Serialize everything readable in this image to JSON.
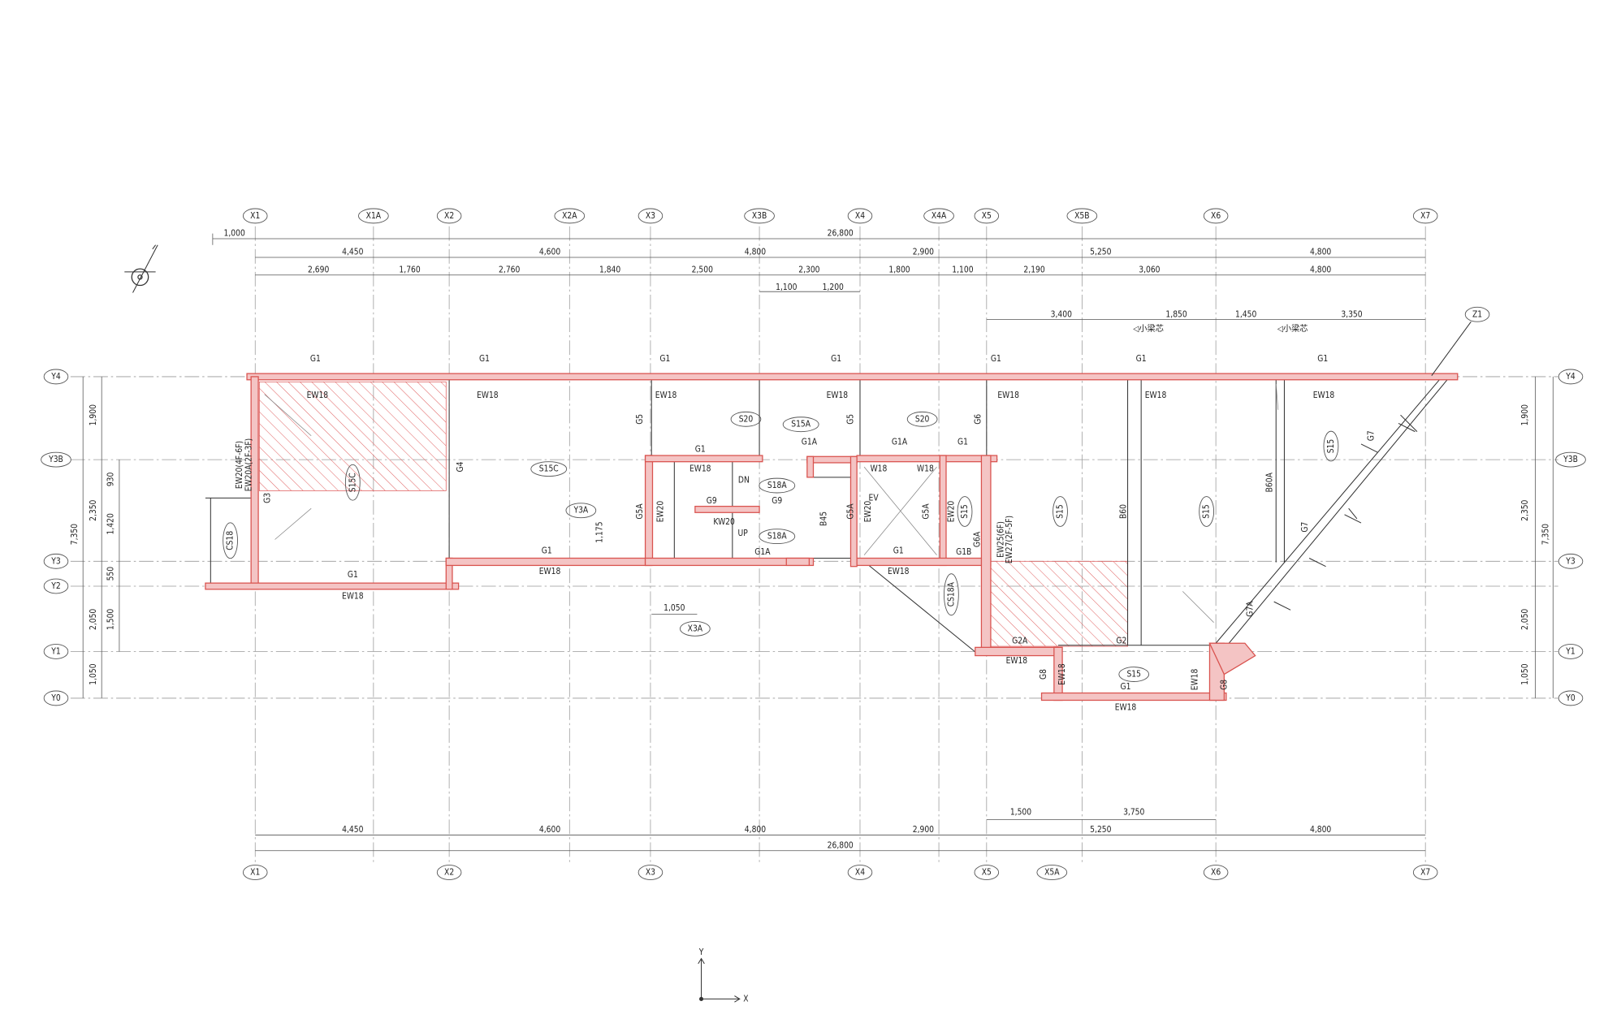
{
  "grid_labels": {
    "top": [
      "X1",
      "X1A",
      "X2",
      "X2A",
      "X3",
      "X3B",
      "X4",
      "X4A",
      "X5",
      "X5B",
      "X6",
      "X7"
    ],
    "bottom": [
      "X1",
      "X2",
      "X3",
      "X4",
      "X5",
      "X5A",
      "X6",
      "X7"
    ],
    "left": [
      "Y4",
      "Y3B",
      "Y3",
      "Y2",
      "Y1",
      "Y0"
    ],
    "right": [
      "Y4",
      "Y3B",
      "Y3",
      "Y1",
      "Y0"
    ],
    "extra": [
      "Z1"
    ]
  },
  "dimensions": {
    "top": [
      "1,000",
      "26,800",
      "4,450",
      "4,600",
      "4,800",
      "2,900",
      "5,250",
      "4,800",
      "2,690",
      "1,760",
      "2,760",
      "1,840",
      "2,500",
      "2,300",
      "1,800",
      "1,100",
      "2,190",
      "3,060",
      "4,800",
      "1,100",
      "1,200",
      "3,400",
      "1,850",
      "1,450",
      "3,350"
    ],
    "left": [
      "1,900",
      "7,350",
      "2,350",
      "930",
      "1,420",
      "550",
      "1,500",
      "2,050",
      "1,050"
    ],
    "right": [
      "1,900",
      "2,350",
      "7,350",
      "2,050",
      "1,050"
    ],
    "bottom": [
      "1,500",
      "3,750",
      "4,450",
      "4,600",
      "4,800",
      "2,900",
      "5,250",
      "4,800",
      "26,800"
    ],
    "inner": [
      "1,175",
      "1,050"
    ]
  },
  "notes": [
    "◁小梁芯",
    "◁小梁芯"
  ],
  "members": [
    "G1",
    "G1",
    "G1",
    "G1",
    "G1",
    "G1",
    "G1",
    "EW18",
    "EW18",
    "EW18",
    "EW18",
    "EW18",
    "EW18",
    "EW18",
    "S20",
    "S20",
    "S15A",
    "G5",
    "G5",
    "G6",
    "G1A",
    "G1A",
    "G1",
    "G1",
    "G4",
    "S15C",
    "S15C",
    "EW20(4F-6F)",
    "EW20A(2F-3F)",
    "G3",
    "EW18",
    "W18",
    "W18",
    "S18A",
    "S18A",
    "DN",
    "UP",
    "Y3A",
    "G9",
    "G9",
    "EV",
    "G5A",
    "G5A",
    "G5A",
    "EW20",
    "EW20",
    "EW20",
    "S15",
    "KW20",
    "B45",
    "CS18",
    "G6A",
    "EW25(6F)",
    "EW27(2F-5F)",
    "S15",
    "S15",
    "S15",
    "B60",
    "B60A",
    "G1",
    "G1",
    "G1A",
    "G1B",
    "G1",
    "EW18",
    "EW18",
    "EW18",
    "CS18A",
    "X3A",
    "G7",
    "G7",
    "G7A",
    "G2A",
    "G2",
    "EW18",
    "S15",
    "G8",
    "EW18",
    "G1",
    "EW18",
    "G8",
    "EW18"
  ],
  "axes": {
    "y": "Y",
    "x": "X"
  }
}
